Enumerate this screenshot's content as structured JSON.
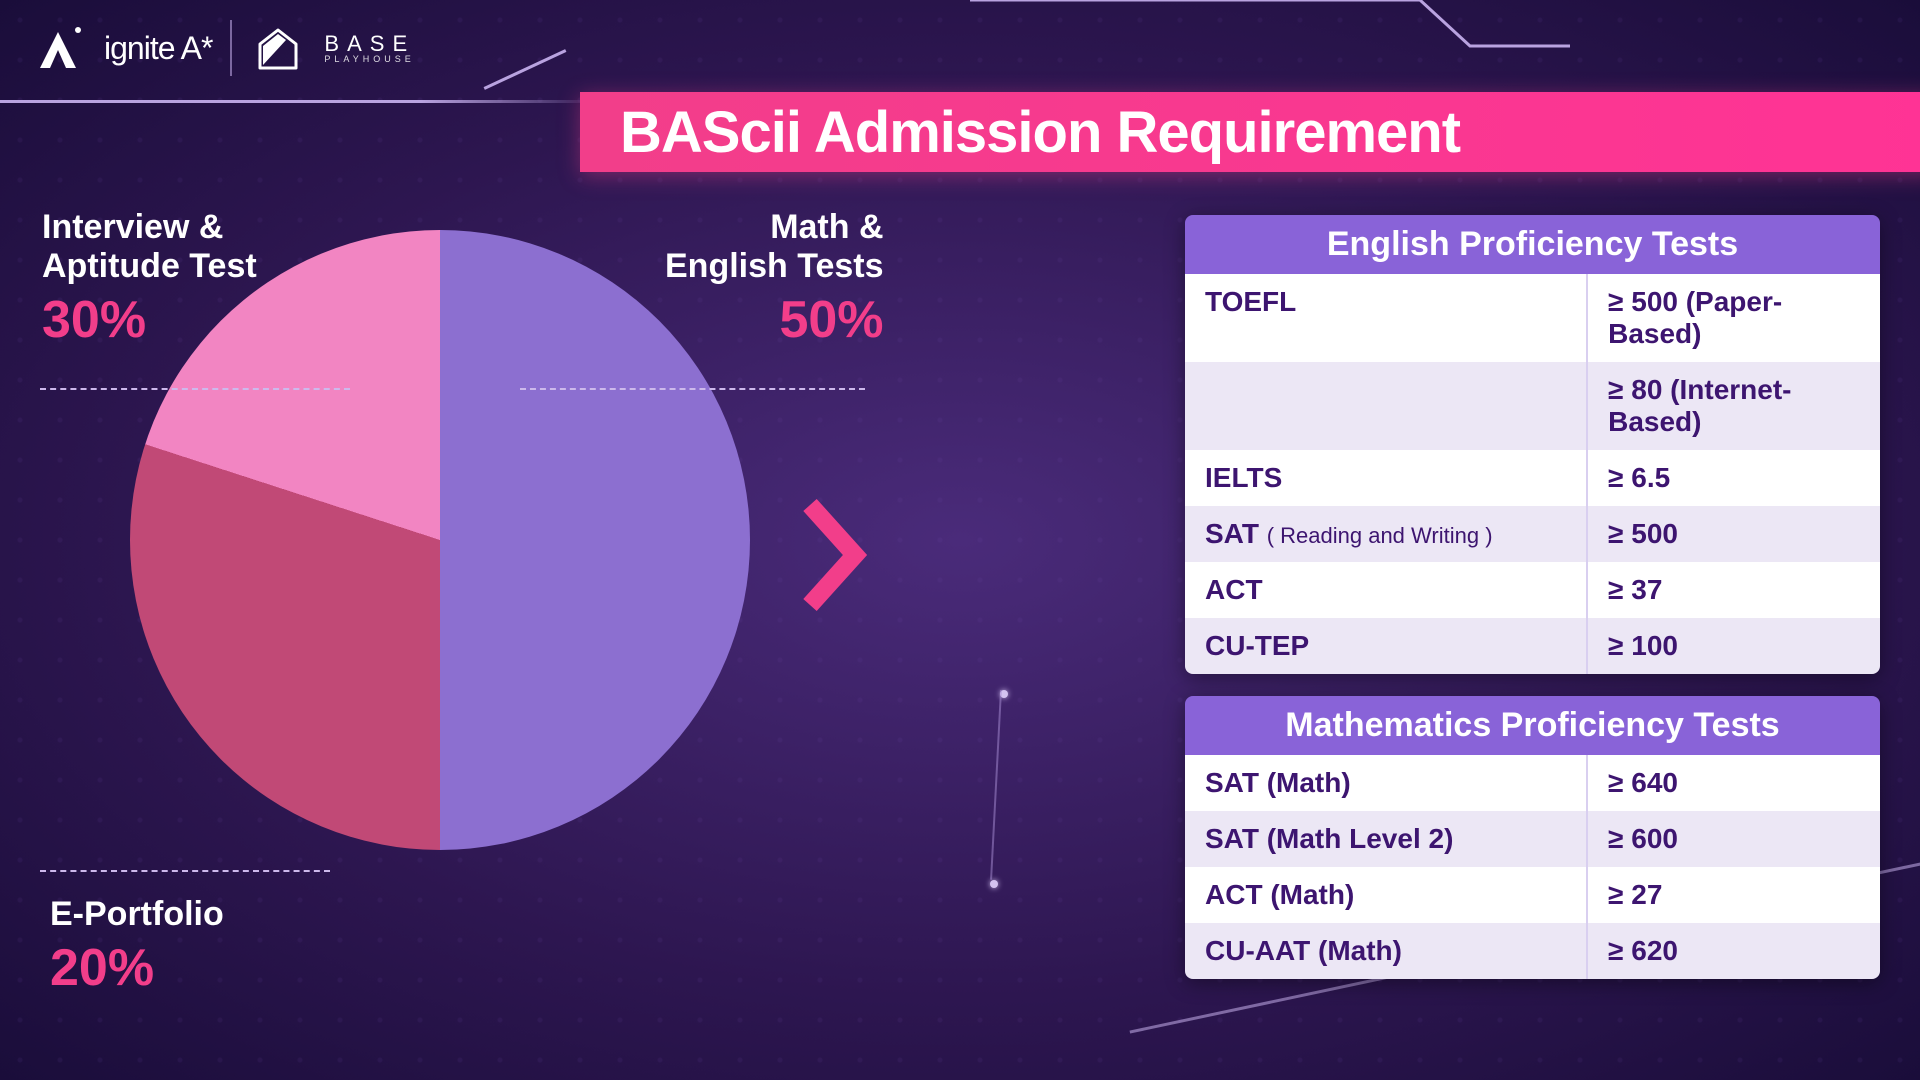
{
  "header": {
    "brand1": "ignite A*",
    "brand2_line1": "BASE",
    "brand2_line2": "PLAYHOUSE"
  },
  "title": "BAScii Admission Requirement",
  "pie": {
    "type": "pie",
    "slices": [
      {
        "label_lines": [
          "Math &",
          "English Tests"
        ],
        "percent": "50%",
        "value": 50,
        "color": "#8c6fd0"
      },
      {
        "label_lines": [
          "Interview &",
          "Aptitude Test"
        ],
        "percent": "30%",
        "value": 30,
        "color": "#c14976"
      },
      {
        "label_lines": [
          "E-Portfolio"
        ],
        "percent": "20%",
        "value": 20,
        "color": "#f285c2"
      }
    ],
    "percent_color": "#f23e8a",
    "label_color": "#ffffff",
    "label_fontsize": 34,
    "percent_fontsize": 52
  },
  "arrow_color": "#f23e8a",
  "tables": {
    "header_bg": "#8963d8",
    "row_alt_colors": [
      "#ffffff",
      "#ece7f5"
    ],
    "text_color": "#3d1570",
    "english": {
      "title": "English Proficiency Tests",
      "rows": [
        {
          "name": "TOEFL",
          "sub": "",
          "score": "≥ 500 (Paper-Based)"
        },
        {
          "name": "",
          "sub": "",
          "score": "≥ 80 (Internet-Based)"
        },
        {
          "name": "IELTS",
          "sub": "",
          "score": "≥ 6.5"
        },
        {
          "name": "SAT",
          "sub": "( Reading and Writing )",
          "score": "≥ 500"
        },
        {
          "name": "ACT",
          "sub": "",
          "score": "≥ 37"
        },
        {
          "name": "CU-TEP",
          "sub": "",
          "score": "≥ 100"
        }
      ]
    },
    "math": {
      "title": "Mathematics Proficiency Tests",
      "rows": [
        {
          "name": "SAT (Math)",
          "score": "≥ 640"
        },
        {
          "name": "SAT (Math Level 2)",
          "score": "≥ 600"
        },
        {
          "name": "ACT (Math)",
          "score": "≥ 27"
        },
        {
          "name": "CU-AAT (Math)",
          "score": "≥ 620"
        }
      ]
    }
  },
  "bg": {
    "gradient_from": "#4a2b7a",
    "gradient_to": "#1a0d3a",
    "accent_line": "#b9a3e0",
    "banner_color": "#f23e8a"
  }
}
